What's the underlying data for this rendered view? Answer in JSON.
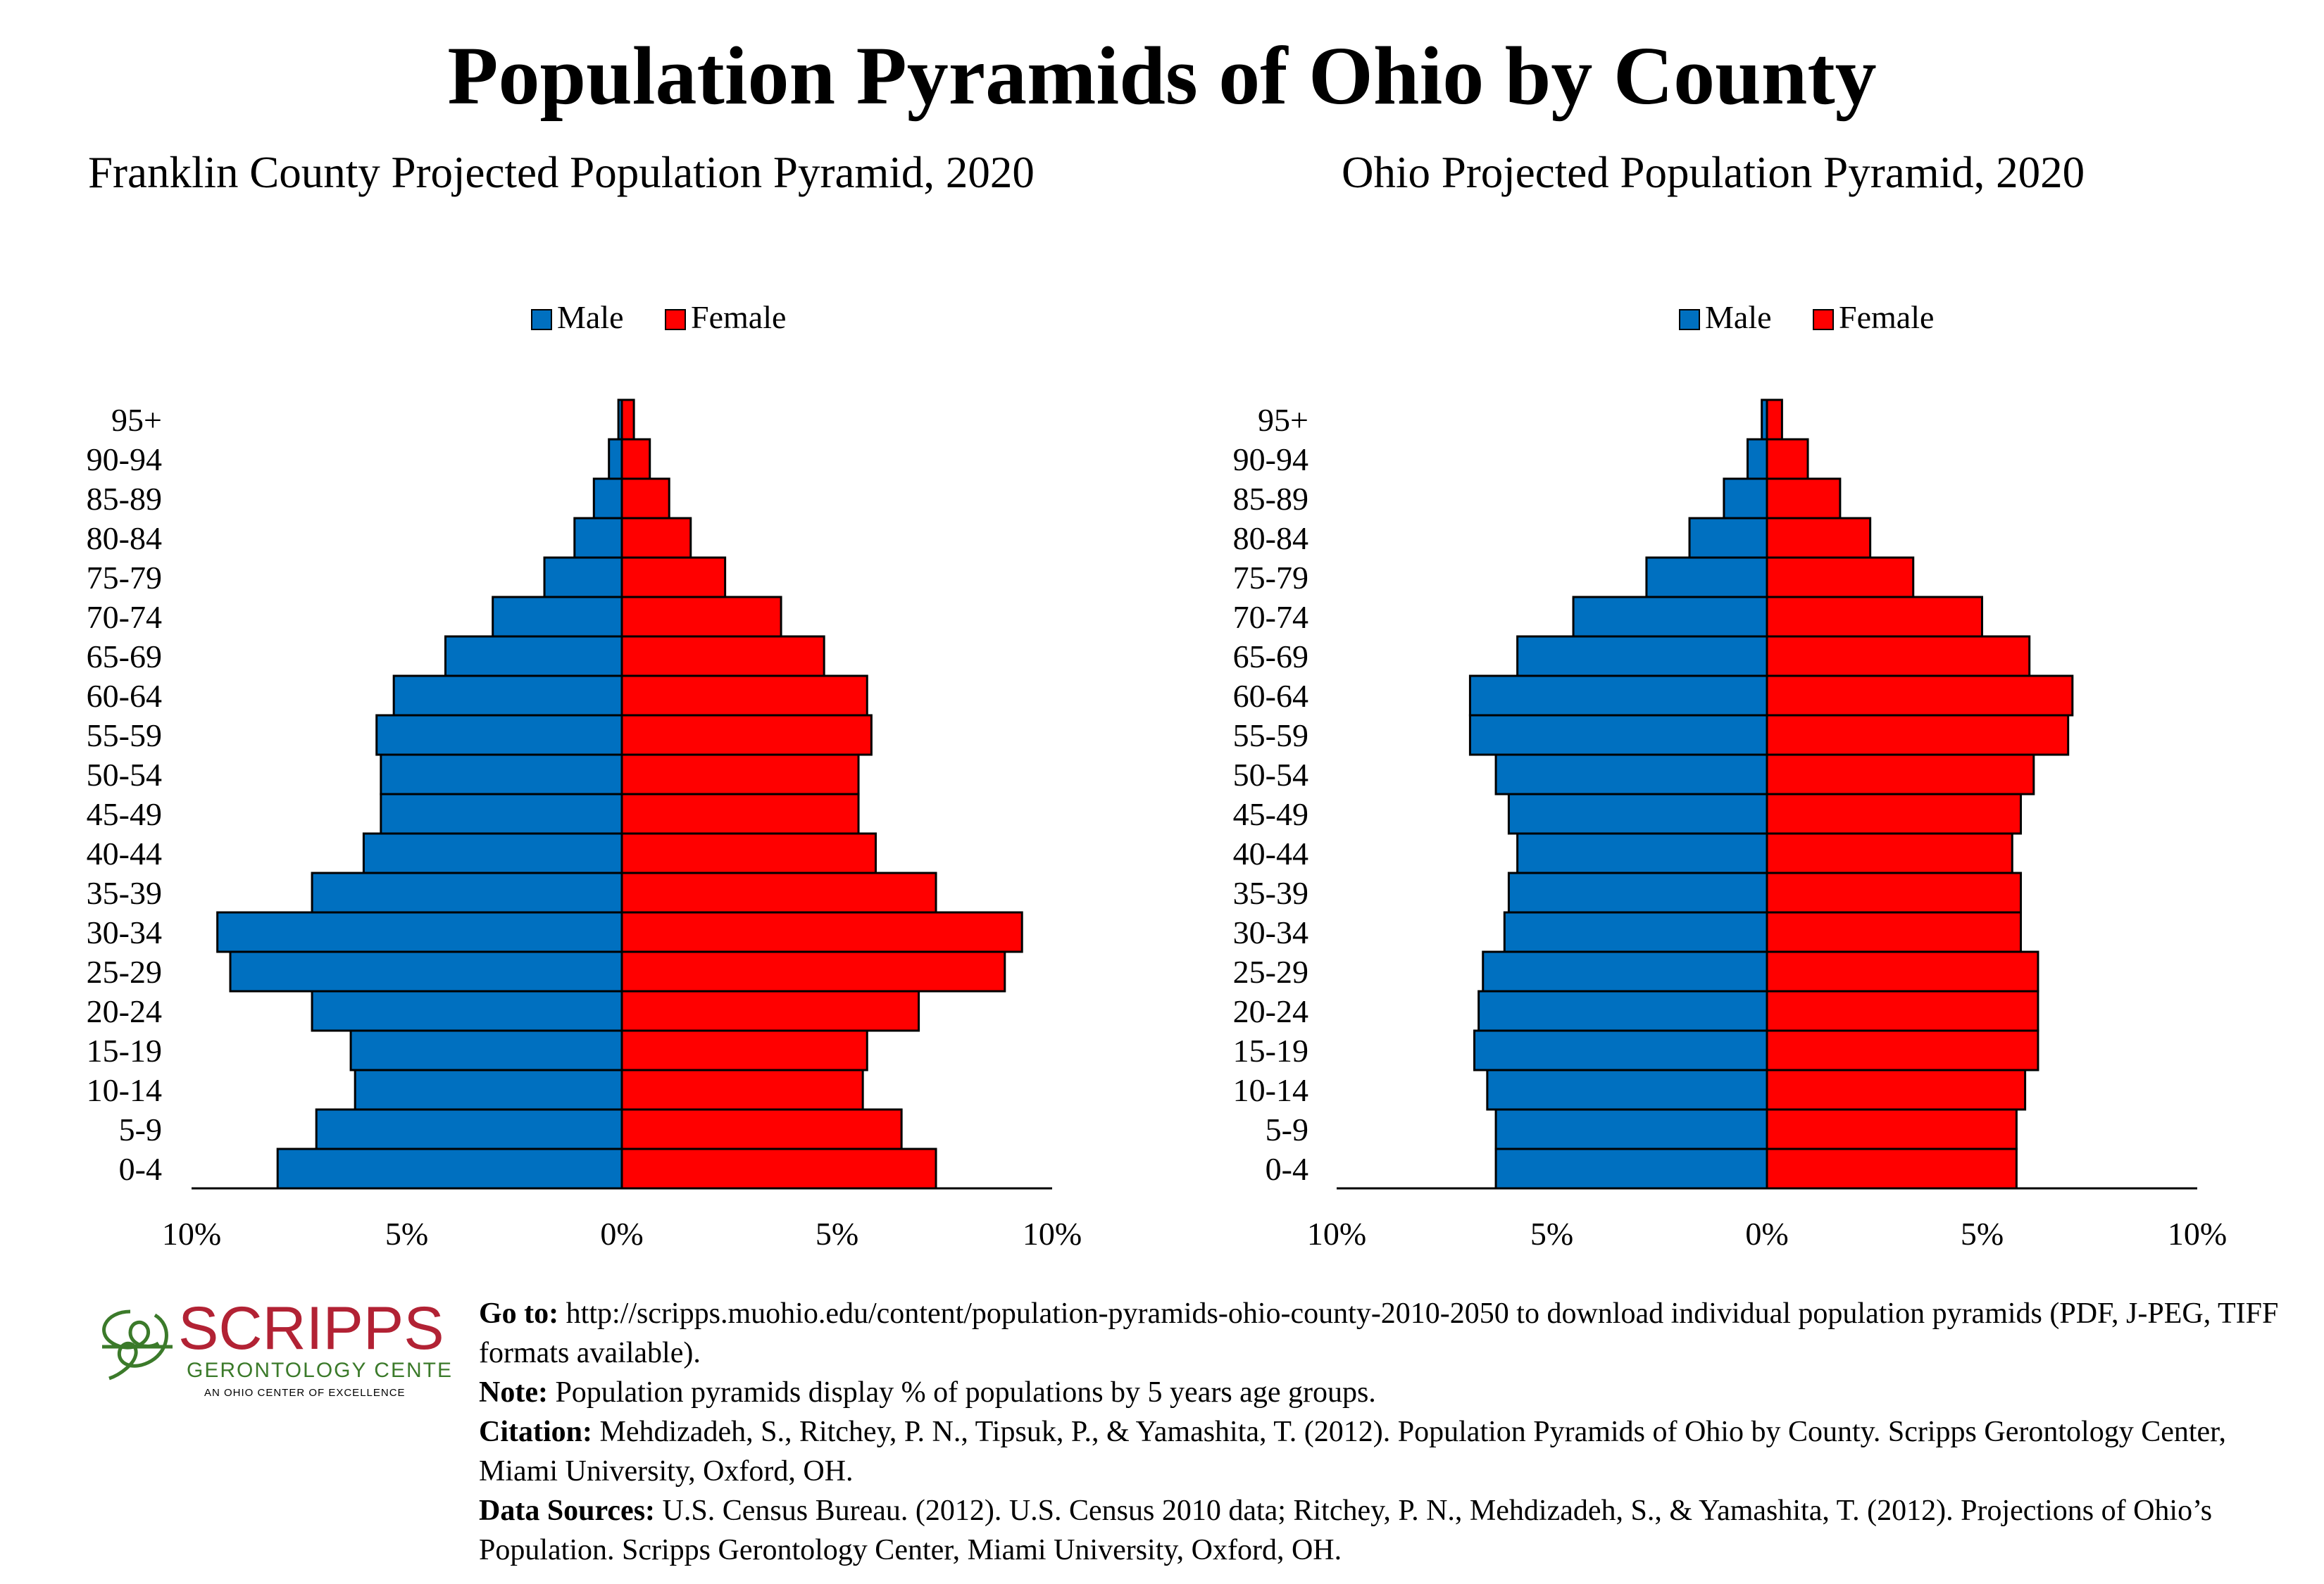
{
  "title": "Population Pyramids of Ohio by County",
  "colors": {
    "male": "#0070C0",
    "female": "#FF0000",
    "outline": "#000000",
    "logo_red": "#B22234",
    "logo_green": "#3B7A2A"
  },
  "legend": {
    "male": "Male",
    "female": "Female"
  },
  "chart_data": [
    {
      "type": "bar",
      "orientation": "horizontal-pyramid",
      "title": "Franklin County Projected Population Pyramid, 2020",
      "categories": [
        "0-4",
        "5-9",
        "10-14",
        "15-19",
        "20-24",
        "25-29",
        "30-34",
        "35-39",
        "40-44",
        "45-49",
        "50-54",
        "55-59",
        "60-64",
        "65-69",
        "70-74",
        "75-79",
        "80-84",
        "85-89",
        "90-94",
        "95+"
      ],
      "series": [
        {
          "name": "Male",
          "values": [
            8.0,
            7.1,
            6.2,
            6.3,
            7.2,
            9.1,
            9.4,
            7.2,
            6.0,
            5.6,
            5.6,
            5.7,
            5.3,
            4.1,
            3.0,
            1.8,
            1.1,
            0.65,
            0.3,
            0.08
          ]
        },
        {
          "name": "Female",
          "values": [
            7.3,
            6.5,
            5.6,
            5.7,
            6.9,
            8.9,
            9.3,
            7.3,
            5.9,
            5.5,
            5.5,
            5.8,
            5.7,
            4.7,
            3.7,
            2.4,
            1.6,
            1.1,
            0.65,
            0.28
          ]
        }
      ],
      "xlim": [
        -10,
        10
      ],
      "xticks": [
        "10%",
        "5%",
        "0%",
        "5%",
        "10%"
      ],
      "legend_position": "top-center"
    },
    {
      "type": "bar",
      "orientation": "horizontal-pyramid",
      "title": "Ohio Projected Population Pyramid, 2020",
      "categories": [
        "0-4",
        "5-9",
        "10-14",
        "15-19",
        "20-24",
        "25-29",
        "30-34",
        "35-39",
        "40-44",
        "45-49",
        "50-54",
        "55-59",
        "60-64",
        "65-69",
        "70-74",
        "75-79",
        "80-84",
        "85-89",
        "90-94",
        "95+"
      ],
      "series": [
        {
          "name": "Male",
          "values": [
            6.3,
            6.3,
            6.5,
            6.8,
            6.7,
            6.6,
            6.1,
            6.0,
            5.8,
            6.0,
            6.3,
            6.9,
            6.9,
            5.8,
            4.5,
            2.8,
            1.8,
            1.0,
            0.45,
            0.12
          ]
        },
        {
          "name": "Female",
          "values": [
            5.8,
            5.8,
            6.0,
            6.3,
            6.3,
            6.3,
            5.9,
            5.9,
            5.7,
            5.9,
            6.2,
            7.0,
            7.1,
            6.1,
            5.0,
            3.4,
            2.4,
            1.7,
            0.95,
            0.35
          ]
        }
      ],
      "xlim": [
        -10,
        10
      ],
      "xticks": [
        "10%",
        "5%",
        "0%",
        "5%",
        "10%"
      ],
      "legend_position": "top-center"
    }
  ],
  "logo": {
    "name": "SCRIPPS",
    "subtitle": "GERONTOLOGY CENTER",
    "tagline": "AN OHIO CENTER OF EXCELLENCE"
  },
  "footer": {
    "goto_label": "Go to:",
    "goto_text": " http://scripps.muohio.edu/content/population-pyramids-ohio-county-2010-2050 to download individual population pyramids (PDF, J-PEG, TIFF formats available).",
    "note_label": "Note:",
    "note_text": " Population pyramids display % of populations by 5 years age groups.",
    "citation_label": "Citation:",
    "citation_text": " Mehdizadeh, S., Ritchey, P. N., Tipsuk, P., & Yamashita, T. (2012). Population Pyramids of Ohio by County. Scripps Gerontology Center, Miami University, Oxford, OH.",
    "sources_label": "Data Sources:",
    "sources_text": " U.S. Census Bureau. (2012). U.S. Census 2010 data; Ritchey, P. N., Mehdizadeh, S., & Yamashita, T. (2012). Projections of Ohio’s Population. Scripps Gerontology Center, Miami University, Oxford, OH."
  }
}
